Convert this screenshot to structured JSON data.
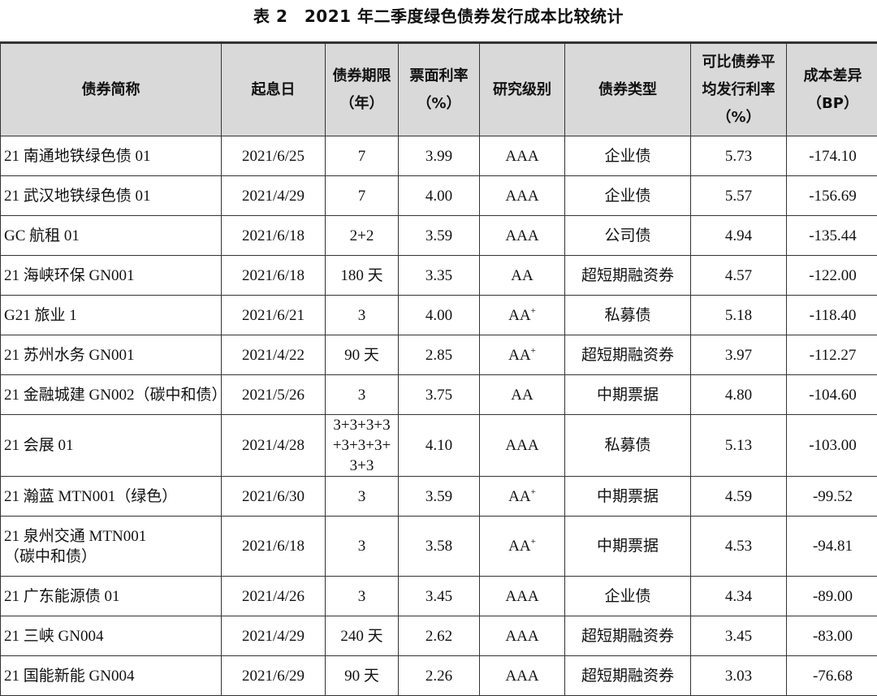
{
  "title": "表 2　2021 年二季度绿色债券发行成本比较统计",
  "headers": [
    "债券简称",
    "起息日",
    "债券期限（年）",
    "票面利率（%）",
    "研究级别",
    "债券类型",
    "可比债券平均发行利率（%）",
    "成本差异（BP）"
  ],
  "header_lines": [
    [
      "债券简称"
    ],
    [
      "起息日"
    ],
    [
      "债券期限",
      "（年）"
    ],
    [
      "票面利率",
      "（%）"
    ],
    [
      "研究级别"
    ],
    [
      "债券类型"
    ],
    [
      "可比债券平",
      "均发行利率",
      "（%）"
    ],
    [
      "成本差异",
      "（BP）"
    ]
  ],
  "rows": [
    {
      "name": "21 南通地铁绿色债 01",
      "date": "2021/6/25",
      "term": "7",
      "coupon": "3.99",
      "rating": "AAA",
      "rating_sup": "",
      "type": "企业债",
      "avg": "5.73",
      "diff": "-174.10"
    },
    {
      "name": "21 武汉地铁绿色债 01",
      "date": "2021/4/29",
      "term": "7",
      "coupon": "4.00",
      "rating": "AAA",
      "rating_sup": "",
      "type": "企业债",
      "avg": "5.57",
      "diff": "-156.69"
    },
    {
      "name": "GC 航租 01",
      "date": "2021/6/18",
      "term": "2+2",
      "coupon": "3.59",
      "rating": "AAA",
      "rating_sup": "",
      "type": "公司债",
      "avg": "4.94",
      "diff": "-135.44"
    },
    {
      "name": "21 海峡环保 GN001",
      "date": "2021/6/18",
      "term": "180 天",
      "coupon": "3.35",
      "rating": "AA",
      "rating_sup": "",
      "type": "超短期融资券",
      "avg": "4.57",
      "diff": "-122.00"
    },
    {
      "name": "G21 旅业 1",
      "date": "2021/6/21",
      "term": "3",
      "coupon": "4.00",
      "rating": "AA",
      "rating_sup": "+",
      "type": "私募债",
      "avg": "5.18",
      "diff": "-118.40"
    },
    {
      "name": "21 苏州水务 GN001",
      "date": "2021/4/22",
      "term": "90 天",
      "coupon": "2.85",
      "rating": "AA",
      "rating_sup": "+",
      "type": "超短期融资券",
      "avg": "3.97",
      "diff": "-112.27"
    },
    {
      "name": "21 金融城建 GN002（碳中和债）",
      "date": "2021/5/26",
      "term": "3",
      "coupon": "3.75",
      "rating": "AA",
      "rating_sup": "",
      "type": "中期票据",
      "avg": "4.80",
      "diff": "-104.60"
    },
    {
      "name": "21 会展 01",
      "date": "2021/4/28",
      "term": "3+3+3+3 +3+3+3+ 3+3",
      "coupon": "4.10",
      "rating": "AAA",
      "rating_sup": "",
      "type": "私募债",
      "avg": "5.13",
      "diff": "-103.00"
    },
    {
      "name": "21 瀚蓝 MTN001（绿色）",
      "date": "2021/6/30",
      "term": "3",
      "coupon": "3.59",
      "rating": "AA",
      "rating_sup": "+",
      "type": "中期票据",
      "avg": "4.59",
      "diff": "-99.52"
    },
    {
      "name": "21 泉州交通 MTN001 （碳中和债）",
      "date": "2021/6/18",
      "term": "3",
      "coupon": "3.58",
      "rating": "AA",
      "rating_sup": "+",
      "type": "中期票据",
      "avg": "4.53",
      "diff": "-94.81"
    },
    {
      "name": "21 广东能源债 01",
      "date": "2021/4/26",
      "term": "3",
      "coupon": "3.45",
      "rating": "AAA",
      "rating_sup": "",
      "type": "企业债",
      "avg": "4.34",
      "diff": "-89.00"
    },
    {
      "name": "21 三峡 GN004",
      "date": "2021/4/29",
      "term": "240 天",
      "coupon": "2.62",
      "rating": "AAA",
      "rating_sup": "",
      "type": "超短期融资券",
      "avg": "3.45",
      "diff": "-83.00"
    },
    {
      "name": "21 国能新能 GN004",
      "date": "2021/6/29",
      "term": "90 天",
      "coupon": "2.26",
      "rating": "AAA",
      "rating_sup": "",
      "type": "超短期融资券",
      "avg": "3.03",
      "diff": "-76.68"
    }
  ]
}
